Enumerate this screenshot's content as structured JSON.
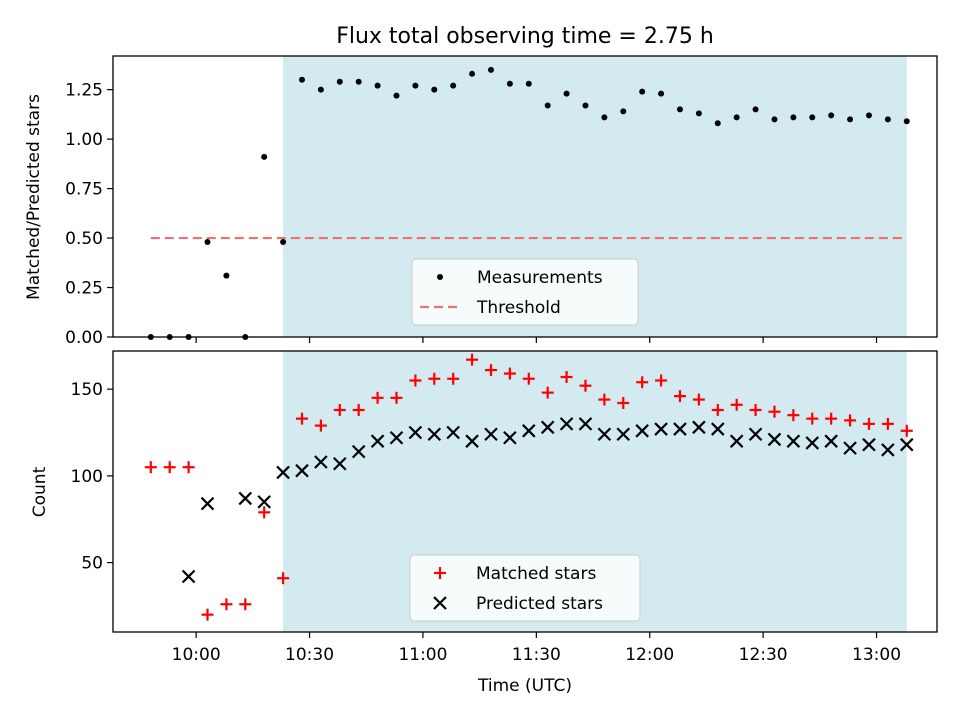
{
  "chart_data": [
    {
      "type": "scatter",
      "title": "Flux total observing time = 2.75 h",
      "ylabel": "Matched/Predicted stars",
      "xlabel": "",
      "ylim": [
        0,
        1.42
      ],
      "xlim": [
        "09:38",
        "13:16"
      ],
      "yticks": [
        0.0,
        0.25,
        0.5,
        0.75,
        1.0,
        1.25
      ],
      "ytick_labels": [
        "0.00",
        "0.25",
        "0.50",
        "0.75",
        "1.00",
        "1.25"
      ],
      "shaded_region": {
        "start": "10:23",
        "end": "13:08",
        "color": "#d3eaf1"
      },
      "threshold": {
        "value": 0.5,
        "from": "09:48",
        "to": "13:08",
        "color": "#f07070",
        "style": "dashed"
      },
      "legend": {
        "position": "bottom-center",
        "entries": [
          "Measurements",
          "Threshold"
        ]
      },
      "series": [
        {
          "name": "Measurements",
          "marker": "dot",
          "color": "#000000",
          "x": [
            "09:48",
            "09:53",
            "09:58",
            "10:03",
            "10:08",
            "10:13",
            "10:18",
            "10:23",
            "10:28",
            "10:33",
            "10:38",
            "10:43",
            "10:48",
            "10:53",
            "10:58",
            "11:03",
            "11:08",
            "11:13",
            "11:18",
            "11:23",
            "11:28",
            "11:33",
            "11:38",
            "11:43",
            "11:48",
            "11:53",
            "11:58",
            "12:03",
            "12:08",
            "12:13",
            "12:18",
            "12:23",
            "12:28",
            "12:33",
            "12:38",
            "12:43",
            "12:48",
            "12:53",
            "12:58",
            "13:03",
            "13:08"
          ],
          "values": [
            0.0,
            0.0,
            0.0,
            0.48,
            0.31,
            0.0,
            0.91,
            0.48,
            1.3,
            1.25,
            1.29,
            1.29,
            1.27,
            1.22,
            1.27,
            1.25,
            1.27,
            1.33,
            1.35,
            1.28,
            1.28,
            1.17,
            1.23,
            1.17,
            1.11,
            1.14,
            1.24,
            1.23,
            1.15,
            1.13,
            1.08,
            1.11,
            1.15,
            1.1,
            1.11,
            1.11,
            1.12,
            1.1,
            1.12,
            1.1,
            1.09
          ]
        }
      ]
    },
    {
      "type": "scatter",
      "title": "",
      "ylabel": "Count",
      "xlabel": "Time (UTC)",
      "ylim": [
        10,
        172
      ],
      "xlim": [
        "09:38",
        "13:16"
      ],
      "yticks": [
        50,
        100,
        150
      ],
      "ytick_labels": [
        "50",
        "100",
        "150"
      ],
      "xtick_labels": [
        "10:00",
        "10:30",
        "11:00",
        "11:30",
        "12:00",
        "12:30",
        "13:00"
      ],
      "shaded_region": {
        "start": "10:23",
        "end": "13:08",
        "color": "#d3eaf1"
      },
      "legend": {
        "position": "bottom-center",
        "entries": [
          "Matched stars",
          "Predicted stars"
        ]
      },
      "series": [
        {
          "name": "Matched stars",
          "marker": "plus",
          "color": "#ff0000",
          "x": [
            "09:48",
            "09:53",
            "09:58",
            "10:03",
            "10:08",
            "10:13",
            "10:18",
            "10:23",
            "10:28",
            "10:33",
            "10:38",
            "10:43",
            "10:48",
            "10:53",
            "10:58",
            "11:03",
            "11:08",
            "11:13",
            "11:18",
            "11:23",
            "11:28",
            "11:33",
            "11:38",
            "11:43",
            "11:48",
            "11:53",
            "11:58",
            "12:03",
            "12:08",
            "12:13",
            "12:18",
            "12:23",
            "12:28",
            "12:33",
            "12:38",
            "12:43",
            "12:48",
            "12:53",
            "12:58",
            "13:03",
            "13:08"
          ],
          "values": [
            105,
            105,
            105,
            20,
            26,
            26,
            79,
            41,
            133,
            129,
            138,
            138,
            145,
            145,
            155,
            156,
            156,
            167,
            161,
            159,
            156,
            148,
            157,
            152,
            144,
            142,
            154,
            155,
            146,
            144,
            138,
            141,
            138,
            137,
            135,
            133,
            133,
            132,
            130,
            130,
            126
          ]
        },
        {
          "name": "Predicted stars",
          "marker": "x",
          "color": "#000000",
          "x": [
            "09:58",
            "10:03",
            "10:13",
            "10:18",
            "10:23",
            "10:28",
            "10:33",
            "10:38",
            "10:43",
            "10:48",
            "10:53",
            "10:58",
            "11:03",
            "11:08",
            "11:13",
            "11:18",
            "11:23",
            "11:28",
            "11:33",
            "11:38",
            "11:43",
            "11:48",
            "11:53",
            "11:58",
            "12:03",
            "12:08",
            "12:13",
            "12:18",
            "12:23",
            "12:28",
            "12:33",
            "12:38",
            "12:43",
            "12:48",
            "12:53",
            "12:58",
            "13:03",
            "13:08"
          ],
          "values": [
            42,
            84,
            87,
            85,
            102,
            103,
            108,
            107,
            114,
            120,
            122,
            125,
            124,
            125,
            120,
            124,
            122,
            126,
            128,
            130,
            130,
            124,
            124,
            126,
            127,
            127,
            128,
            127,
            120,
            124,
            121,
            120,
            119,
            120,
            116,
            118,
            115,
            118
          ]
        }
      ]
    }
  ]
}
